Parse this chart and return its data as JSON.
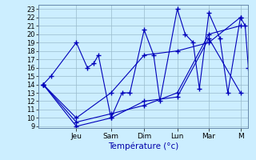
{
  "xlabel": "Température (°c)",
  "bg_color": "#cceeff",
  "line_color": "#0000bb",
  "grid_color": "#99bbcc",
  "yticks": [
    9,
    10,
    11,
    12,
    13,
    14,
    15,
    16,
    17,
    18,
    19,
    20,
    21,
    22,
    23
  ],
  "ylim": [
    8.8,
    23.5
  ],
  "xlim": [
    -0.3,
    13.0
  ],
  "day_labels": [
    "Jeu",
    "Sam",
    "Dim",
    "Lun",
    "Mar",
    "M"
  ],
  "day_positions": [
    2.1,
    4.3,
    6.4,
    8.5,
    10.5,
    12.5
  ],
  "lines": [
    [
      0,
      14,
      0.5,
      15,
      2.1,
      19,
      2.8,
      16,
      3.2,
      16.5,
      3.5,
      17.5,
      4.3,
      10,
      5.0,
      13,
      5.5,
      13,
      6.4,
      20.5,
      7.0,
      17.5,
      7.4,
      12,
      8.5,
      23,
      9.0,
      20,
      9.5,
      19,
      9.9,
      13.5,
      10.5,
      22.5,
      11.2,
      19.5,
      11.7,
      13,
      12.5,
      22,
      12.8,
      21,
      13.0,
      16
    ],
    [
      0,
      14,
      2.1,
      9,
      4.3,
      10,
      6.4,
      12,
      8.5,
      12.5,
      10.5,
      19.5,
      12.5,
      13
    ],
    [
      0,
      14,
      2.1,
      9.5,
      4.3,
      10.5,
      6.4,
      11.5,
      8.5,
      13,
      10.5,
      20,
      12.5,
      21
    ],
    [
      0,
      14,
      2.1,
      10,
      4.3,
      13,
      6.4,
      17.5,
      8.5,
      18,
      10.5,
      19,
      12.5,
      22
    ]
  ],
  "tick_fontsize": 6,
  "xlabel_fontsize": 7.5,
  "xlabel_color": "#0000aa"
}
